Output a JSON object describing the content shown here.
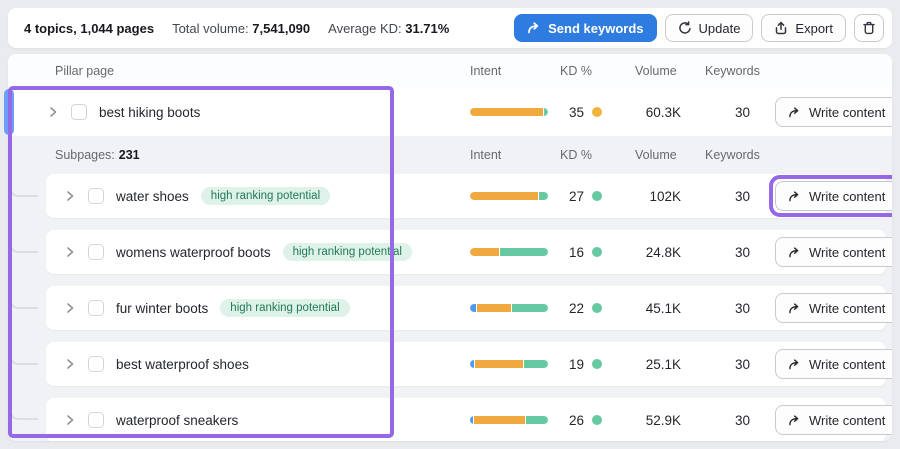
{
  "toolbar": {
    "summary_topics": "4 topics, 1,044 pages",
    "total_volume_label": "Total volume:",
    "total_volume_value": "7,541,090",
    "average_kd_label": "Average KD:",
    "average_kd_value": "31.71%",
    "send_keywords_label": "Send keywords",
    "update_label": "Update",
    "export_label": "Export"
  },
  "table": {
    "header": {
      "pillar_page": "Pillar page",
      "intent": "Intent",
      "kd": "KD %",
      "volume": "Volume",
      "keywords": "Keywords"
    },
    "subpages_label": "Subpages:",
    "subpages_count": "231",
    "badge_label": "high ranking potential",
    "write_content_label": "Write content",
    "pillar_row": {
      "label": "best hiking boots",
      "kd": "35",
      "kd_dot": "yellow",
      "volume": "60.3K",
      "keywords": "30",
      "intent_segments": [
        {
          "type": "commercial",
          "pct": 95
        },
        {
          "type": "transactional",
          "pct": 5
        }
      ]
    },
    "subpage_rows": [
      {
        "label": "water shoes",
        "badge": true,
        "action_highlighted": true,
        "kd": "27",
        "kd_dot": "green",
        "volume": "102K",
        "keywords": "30",
        "intent_segments": [
          {
            "type": "commercial",
            "pct": 88
          },
          {
            "type": "transactional",
            "pct": 12
          }
        ]
      },
      {
        "label": "womens waterproof boots",
        "badge": true,
        "action_highlighted": false,
        "kd": "16",
        "kd_dot": "green",
        "volume": "24.8K",
        "keywords": "30",
        "intent_segments": [
          {
            "type": "commercial",
            "pct": 37
          },
          {
            "type": "transactional",
            "pct": 63
          }
        ]
      },
      {
        "label": "fur winter boots",
        "badge": true,
        "action_highlighted": false,
        "kd": "22",
        "kd_dot": "green",
        "volume": "45.1K",
        "keywords": "30",
        "intent_segments": [
          {
            "type": "informational",
            "pct": 8
          },
          {
            "type": "commercial",
            "pct": 44
          },
          {
            "type": "transactional",
            "pct": 48
          }
        ]
      },
      {
        "label": "best waterproof shoes",
        "badge": false,
        "action_highlighted": false,
        "kd": "19",
        "kd_dot": "green",
        "volume": "25.1K",
        "keywords": "30",
        "intent_segments": [
          {
            "type": "informational",
            "pct": 5
          },
          {
            "type": "commercial",
            "pct": 64
          },
          {
            "type": "transactional",
            "pct": 31
          }
        ]
      },
      {
        "label": "waterproof sneakers",
        "badge": false,
        "action_highlighted": false,
        "kd": "26",
        "kd_dot": "green",
        "volume": "52.9K",
        "keywords": "30",
        "intent_segments": [
          {
            "type": "informational",
            "pct": 4
          },
          {
            "type": "commercial",
            "pct": 67
          },
          {
            "type": "transactional",
            "pct": 29
          }
        ]
      }
    ]
  },
  "colors": {
    "primary_button_blue": "#2e7ce0",
    "highlight_purple": "#9468e6",
    "pillar_accent_blue": "#6b9ef6",
    "intent_informational": "#4b9bf1",
    "intent_commercial": "#f0a93e",
    "intent_transactional": "#66c9a1",
    "kd_dot_yellow": "#f2b33d",
    "kd_dot_green": "#66c9a1",
    "badge_bg": "#dff2e9",
    "badge_text": "#1f7a54"
  }
}
